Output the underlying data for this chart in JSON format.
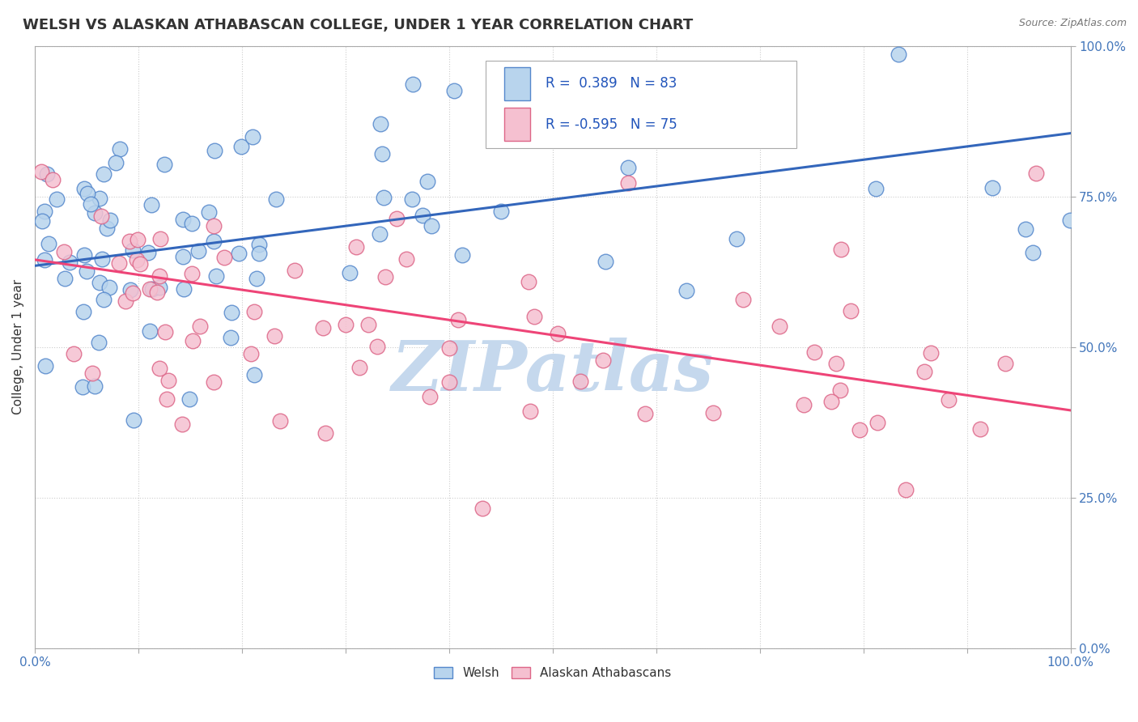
{
  "title": "WELSH VS ALASKAN ATHABASCAN COLLEGE, UNDER 1 YEAR CORRELATION CHART",
  "source": "Source: ZipAtlas.com",
  "ylabel": "College, Under 1 year",
  "xlim": [
    0.0,
    1.0
  ],
  "ylim": [
    0.0,
    1.0
  ],
  "x_ticks": [
    0.0,
    0.1,
    0.2,
    0.3,
    0.4,
    0.5,
    0.6,
    0.7,
    0.8,
    0.9,
    1.0
  ],
  "y_ticks": [
    0.0,
    0.25,
    0.5,
    0.75,
    1.0
  ],
  "welsh_color": "#b8d4ed",
  "welsh_edge_color": "#5588cc",
  "athabascan_color": "#f5c0d0",
  "athabascan_edge_color": "#dd6688",
  "welsh_line_color": "#3366bb",
  "athabascan_line_color": "#ee4477",
  "welsh_R": 0.389,
  "welsh_N": 83,
  "athabascan_R": -0.595,
  "athabascan_N": 75,
  "legend_text_color": "#2255bb",
  "watermark": "ZIPatlas",
  "watermark_color": "#c5d8ed",
  "background_color": "#ffffff",
  "title_color": "#333333",
  "title_fontsize": 13,
  "tick_label_color": "#4477bb",
  "grid_color": "#cccccc",
  "welsh_line_start_y": 0.635,
  "welsh_line_end_y": 0.855,
  "athabascan_line_start_y": 0.645,
  "athabascan_line_end_y": 0.395
}
